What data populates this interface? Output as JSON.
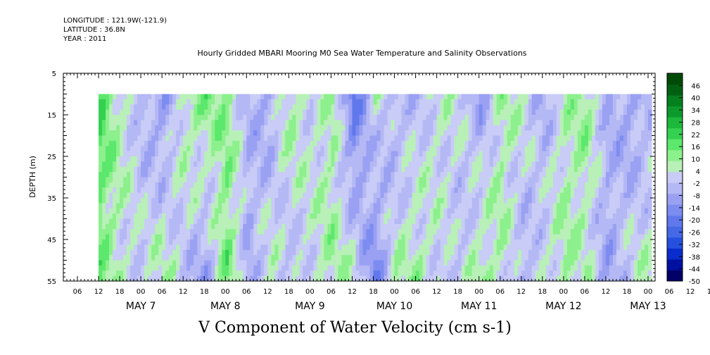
{
  "header": {
    "longitude": "LONGITUDE : 121.9W(-121.9)",
    "latitude": "LATITUDE : 36.8N",
    "year": "YEAR : 2011"
  },
  "chart_data": {
    "type": "heatmap",
    "title": "Hourly Gridded MBARI Mooring M0 Sea Water Temperature and Salinity Observations",
    "caption": "V Component of Water Velocity (cm s-1)",
    "ylabel": "DEPTH (m)",
    "ylim": [
      5,
      55
    ],
    "y_inverted": true,
    "y_ticks": [
      "5",
      "15",
      "25",
      "35",
      "45",
      "55"
    ],
    "data_depth_range": [
      10,
      55
    ],
    "x_hour_ticks": [
      "06",
      "12",
      "18",
      "00",
      "06",
      "12",
      "18",
      "00",
      "06",
      "12",
      "18",
      "00",
      "06",
      "12",
      "18",
      "00",
      "06",
      "12",
      "18",
      "00",
      "06",
      "12",
      "18",
      "00",
      "06",
      "12",
      "18",
      "00",
      "06",
      "12",
      "18",
      "00"
    ],
    "x_day_labels": [
      "MAY  7",
      "MAY  8",
      "MAY  9",
      "MAY 10",
      "MAY 11",
      "MAY 12",
      "MAY 13"
    ],
    "x_start": "2011-05-07 02:00",
    "x_end": "2011-05-14 02:00",
    "data_start": "2011-05-07 12:00",
    "data_end": "2011-05-14 01:00",
    "colorbar": {
      "ticks": [
        "46",
        "40",
        "34",
        "28",
        "22",
        "16",
        "10",
        "4",
        "-2",
        "-8",
        "-14",
        "-20",
        "-26",
        "-32",
        "-38",
        "-44",
        "-50"
      ],
      "range": [
        -50,
        52
      ],
      "colors": [
        "#000066",
        "#0010a0",
        "#0a2ccc",
        "#2450dd",
        "#4468e6",
        "#6078ec",
        "#7c8cf0",
        "#9aa0f2",
        "#b4b8f4",
        "#c8ccf6",
        "#b8f0b8",
        "#8cf08c",
        "#5ce86c",
        "#34d050",
        "#1cb83c",
        "#0c9a2c",
        "#04801e",
        "#006012",
        "#004a08"
      ]
    },
    "day_profiles": [
      {
        "day": "2011-05-07 12:00",
        "hour_offset": 0,
        "v_surface": 18,
        "v_deep": 12
      },
      {
        "day": "2011-05-07 18:00",
        "hour_offset": 6,
        "v_surface": 6,
        "v_deep": 4
      },
      {
        "day": "2011-05-08 00:00",
        "hour_offset": 12,
        "v_surface": -4,
        "v_deep": 2
      },
      {
        "day": "2011-05-08 06:00",
        "hour_offset": 18,
        "v_surface": -10,
        "v_deep": 8
      },
      {
        "day": "2011-05-08 12:00",
        "hour_offset": 24,
        "v_surface": 8,
        "v_deep": -2
      },
      {
        "day": "2011-05-08 18:00",
        "hour_offset": 30,
        "v_surface": 12,
        "v_deep": -10
      },
      {
        "day": "2011-05-09 00:00",
        "hour_offset": 36,
        "v_surface": 10,
        "v_deep": 14
      },
      {
        "day": "2011-05-09 06:00",
        "hour_offset": 42,
        "v_surface": -4,
        "v_deep": -6
      },
      {
        "day": "2011-05-09 12:00",
        "hour_offset": 48,
        "v_surface": -8,
        "v_deep": 6
      },
      {
        "day": "2011-05-09 18:00",
        "hour_offset": 54,
        "v_surface": 10,
        "v_deep": -4
      },
      {
        "day": "2011-05-10 00:00",
        "hour_offset": 60,
        "v_surface": 2,
        "v_deep": 4
      },
      {
        "day": "2011-05-10 06:00",
        "hour_offset": 66,
        "v_surface": 8,
        "v_deep": 8
      },
      {
        "day": "2011-05-10 12:00",
        "hour_offset": 72,
        "v_surface": -20,
        "v_deep": 6
      },
      {
        "day": "2011-05-10 18:00",
        "hour_offset": 78,
        "v_surface": 4,
        "v_deep": -16
      },
      {
        "day": "2011-05-11 00:00",
        "hour_offset": 84,
        "v_surface": -6,
        "v_deep": 6
      },
      {
        "day": "2011-05-11 06:00",
        "hour_offset": 90,
        "v_surface": -2,
        "v_deep": 8
      },
      {
        "day": "2011-05-11 12:00",
        "hour_offset": 96,
        "v_surface": 4,
        "v_deep": 2
      },
      {
        "day": "2011-05-11 18:00",
        "hour_offset": 102,
        "v_surface": 2,
        "v_deep": -2
      },
      {
        "day": "2011-05-12 00:00",
        "hour_offset": 108,
        "v_surface": -8,
        "v_deep": 10
      },
      {
        "day": "2011-05-12 06:00",
        "hour_offset": 114,
        "v_surface": 8,
        "v_deep": 6
      },
      {
        "day": "2011-05-12 12:00",
        "hour_offset": 120,
        "v_surface": 4,
        "v_deep": -6
      },
      {
        "day": "2011-05-12 18:00",
        "hour_offset": 126,
        "v_surface": -6,
        "v_deep": 4
      },
      {
        "day": "2011-05-13 00:00",
        "hour_offset": 132,
        "v_surface": 6,
        "v_deep": 8
      },
      {
        "day": "2011-05-13 06:00",
        "hour_offset": 138,
        "v_surface": 10,
        "v_deep": 4
      },
      {
        "day": "2011-05-13 12:00",
        "hour_offset": 144,
        "v_surface": -4,
        "v_deep": -8
      },
      {
        "day": "2011-05-13 18:00",
        "hour_offset": 150,
        "v_surface": -8,
        "v_deep": 2
      },
      {
        "day": "2011-05-14 00:00",
        "hour_offset": 156,
        "v_surface": -6,
        "v_deep": 6
      }
    ]
  }
}
